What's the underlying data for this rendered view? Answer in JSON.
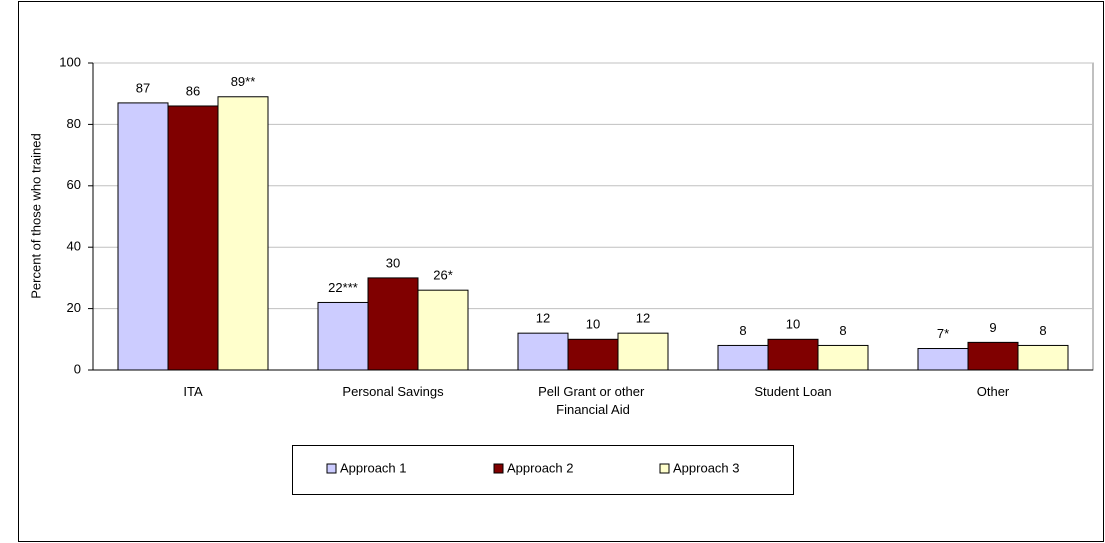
{
  "chart_data": {
    "type": "bar",
    "y_label": "Percent of those who trained",
    "categories": [
      "ITA",
      "Personal Savings",
      "Pell Grant or other Financial Aid",
      "Student Loan",
      "Other"
    ],
    "series": [
      {
        "name": "Approach 1",
        "color": "#ccccff",
        "values": [
          87,
          22,
          12,
          8,
          7
        ],
        "value_labels": [
          "87",
          "22***",
          "12",
          "8",
          "7*"
        ]
      },
      {
        "name": "Approach 2",
        "color": "#800000",
        "values": [
          86,
          30,
          10,
          10,
          9
        ]
      },
      {
        "name": "Approach 3",
        "color": "#ffffcc",
        "values": [
          89,
          26,
          12,
          8,
          8
        ],
        "value_labels": [
          "89**",
          "26*",
          "12",
          "8",
          "8"
        ]
      }
    ],
    "ylim": [
      0,
      100
    ],
    "yticks": [
      0,
      20,
      40,
      60,
      80,
      100
    ],
    "grid": true
  }
}
